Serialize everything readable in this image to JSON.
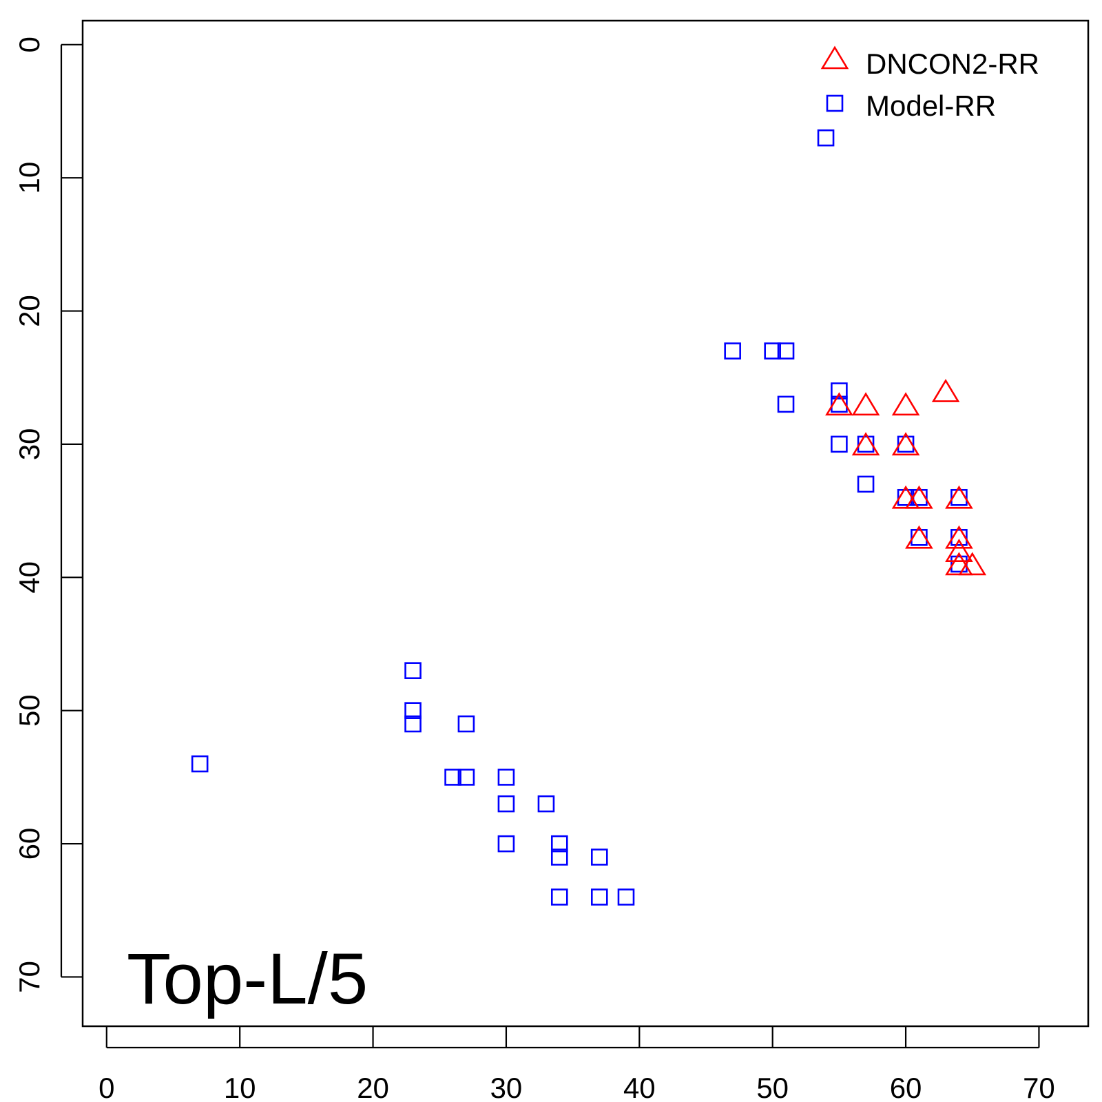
{
  "chart_data": {
    "type": "scatter",
    "title": "",
    "xlabel": "",
    "ylabel": "",
    "xlim": [
      -1.8,
      73.7
    ],
    "ylim": [
      -1.8,
      73.7
    ],
    "y_reversed": true,
    "x_ticks": [
      0,
      10,
      20,
      30,
      40,
      50,
      60,
      70
    ],
    "y_ticks": [
      0,
      10,
      20,
      30,
      40,
      50,
      60,
      70
    ],
    "annotation": "Top-L/5",
    "annotation_position": "bottom-left",
    "legend_position": "top-right",
    "series": [
      {
        "name": "DNCON2-RR",
        "marker": "triangle",
        "color": "#ff0000",
        "points": [
          [
            63,
            26
          ],
          [
            55,
            27
          ],
          [
            57,
            27
          ],
          [
            60,
            27
          ],
          [
            57,
            30
          ],
          [
            60,
            30
          ],
          [
            60,
            34
          ],
          [
            61,
            34
          ],
          [
            64,
            34
          ],
          [
            61,
            37
          ],
          [
            64,
            37
          ],
          [
            64,
            38
          ],
          [
            64,
            39
          ],
          [
            65,
            39
          ]
        ]
      },
      {
        "name": "Model-RR",
        "marker": "square",
        "color": "#0000ff",
        "points": [
          [
            54,
            7
          ],
          [
            47,
            23
          ],
          [
            50,
            23
          ],
          [
            51,
            23
          ],
          [
            55,
            26
          ],
          [
            55,
            27
          ],
          [
            51,
            27
          ],
          [
            55,
            30
          ],
          [
            57,
            30
          ],
          [
            60,
            30
          ],
          [
            57,
            33
          ],
          [
            60,
            34
          ],
          [
            61,
            34
          ],
          [
            64,
            34
          ],
          [
            61,
            37
          ],
          [
            64,
            37
          ],
          [
            64,
            39
          ],
          [
            23,
            47
          ],
          [
            23,
            50
          ],
          [
            23,
            51
          ],
          [
            27,
            51
          ],
          [
            7,
            54
          ],
          [
            26,
            55
          ],
          [
            27,
            55
          ],
          [
            30,
            55
          ],
          [
            30,
            57
          ],
          [
            33,
            57
          ],
          [
            30,
            60
          ],
          [
            34,
            60
          ],
          [
            34,
            61
          ],
          [
            37,
            61
          ],
          [
            34,
            64
          ],
          [
            37,
            64
          ],
          [
            39,
            64
          ]
        ]
      }
    ]
  }
}
